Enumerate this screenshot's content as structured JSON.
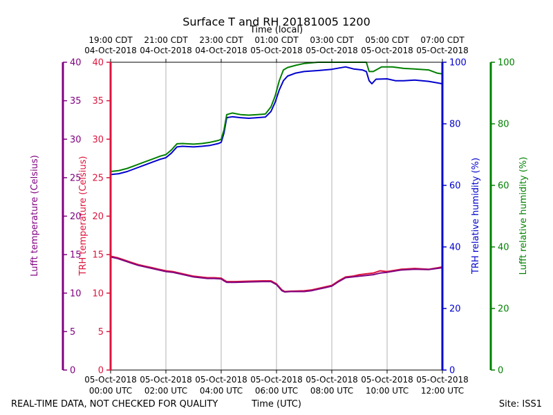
{
  "chart_data": {
    "type": "line",
    "title": "Surface T and RH 20181005 1200",
    "top_axis_label": "Time (local)",
    "xlabel": "Time (UTC)",
    "footer_left": "REAL-TIME DATA, NOT CHECKED FOR QUALITY",
    "footer_right": "Site: ISS1",
    "x_hours_utc": [
      0,
      12
    ],
    "bottom_ticks": [
      {
        "hour": 0,
        "line1": "05-Oct-2018",
        "line2": "00:00 UTC"
      },
      {
        "hour": 2,
        "line1": "05-Oct-2018",
        "line2": "02:00 UTC"
      },
      {
        "hour": 4,
        "line1": "05-Oct-2018",
        "line2": "04:00 UTC"
      },
      {
        "hour": 6,
        "line1": "05-Oct-2018",
        "line2": "06:00 UTC"
      },
      {
        "hour": 8,
        "line1": "05-Oct-2018",
        "line2": "08:00 UTC"
      },
      {
        "hour": 10,
        "line1": "05-Oct-2018",
        "line2": "10:00 UTC"
      },
      {
        "hour": 12,
        "line1": "05-Oct-2018",
        "line2": "12:00 UTC"
      }
    ],
    "top_ticks": [
      {
        "hour": 0,
        "line1": "19:00 CDT",
        "line2": "04-Oct-2018"
      },
      {
        "hour": 2,
        "line1": "21:00 CDT",
        "line2": "04-Oct-2018"
      },
      {
        "hour": 4,
        "line1": "23:00 CDT",
        "line2": "04-Oct-2018"
      },
      {
        "hour": 6,
        "line1": "01:00 CDT",
        "line2": "05-Oct-2018"
      },
      {
        "hour": 8,
        "line1": "03:00 CDT",
        "line2": "05-Oct-2018"
      },
      {
        "hour": 10,
        "line1": "05:00 CDT",
        "line2": "05-Oct-2018"
      },
      {
        "hour": 12,
        "line1": "07:00 CDT",
        "line2": "05-Oct-2018"
      }
    ],
    "grid": "vertical",
    "axes": {
      "lufft_temp": {
        "label": "Lufft temperature (Celsius)",
        "range": [
          0,
          40
        ],
        "ticks": [
          "0",
          "5",
          "10",
          "15",
          "20",
          "25",
          "30",
          "35",
          "40"
        ],
        "color": "#800080"
      },
      "trh_temp": {
        "label": "TRH temperature (Celsius)",
        "range": [
          0,
          40
        ],
        "ticks": [
          "0",
          "5",
          "10",
          "15",
          "20",
          "25",
          "30",
          "35",
          "40"
        ],
        "color": "#dc143c"
      },
      "trh_rh": {
        "label": "TRH relative humidity (%)",
        "range": [
          0,
          100
        ],
        "ticks": [
          "0",
          "20",
          "40",
          "60",
          "80",
          "100"
        ],
        "color": "#0000cd"
      },
      "lufft_rh": {
        "label": "Lufft relative humidity (%)",
        "range": [
          0,
          100
        ],
        "ticks": [
          "0",
          "20",
          "40",
          "60",
          "80",
          "100"
        ],
        "color": "#008000"
      }
    },
    "series": [
      {
        "axis": "trh_temp",
        "color": "#dc143c",
        "points": [
          [
            0,
            14.8
          ],
          [
            0.25,
            14.6
          ],
          [
            0.5,
            14.3
          ],
          [
            0.75,
            14.0
          ],
          [
            1.0,
            13.7
          ],
          [
            1.25,
            13.5
          ],
          [
            1.5,
            13.3
          ],
          [
            1.75,
            13.1
          ],
          [
            2.0,
            12.9
          ],
          [
            2.25,
            12.8
          ],
          [
            2.5,
            12.6
          ],
          [
            2.75,
            12.4
          ],
          [
            3.0,
            12.2
          ],
          [
            3.25,
            12.1
          ],
          [
            3.5,
            12.0
          ],
          [
            3.75,
            12.0
          ],
          [
            4.0,
            11.95
          ],
          [
            4.1,
            11.7
          ],
          [
            4.2,
            11.5
          ],
          [
            4.5,
            11.5
          ],
          [
            5.0,
            11.55
          ],
          [
            5.5,
            11.6
          ],
          [
            5.8,
            11.6
          ],
          [
            6.0,
            11.2
          ],
          [
            6.1,
            10.8
          ],
          [
            6.2,
            10.4
          ],
          [
            6.3,
            10.2
          ],
          [
            6.5,
            10.25
          ],
          [
            7.0,
            10.3
          ],
          [
            7.25,
            10.4
          ],
          [
            7.5,
            10.6
          ],
          [
            7.75,
            10.8
          ],
          [
            8.0,
            11.0
          ],
          [
            8.25,
            11.6
          ],
          [
            8.5,
            12.1
          ],
          [
            8.75,
            12.2
          ],
          [
            9.0,
            12.4
          ],
          [
            9.25,
            12.5
          ],
          [
            9.5,
            12.6
          ],
          [
            9.75,
            12.9
          ],
          [
            10.0,
            12.8
          ],
          [
            10.5,
            13.1
          ],
          [
            11.0,
            13.2
          ],
          [
            11.5,
            13.1
          ],
          [
            12.0,
            13.4
          ]
        ]
      },
      {
        "axis": "lufft_temp",
        "color": "#800080",
        "points": [
          [
            0,
            14.7
          ],
          [
            0.25,
            14.5
          ],
          [
            0.5,
            14.2
          ],
          [
            0.75,
            13.9
          ],
          [
            1.0,
            13.6
          ],
          [
            1.25,
            13.4
          ],
          [
            1.5,
            13.2
          ],
          [
            1.75,
            13.0
          ],
          [
            2.0,
            12.8
          ],
          [
            2.25,
            12.7
          ],
          [
            2.5,
            12.5
          ],
          [
            2.75,
            12.3
          ],
          [
            3.0,
            12.1
          ],
          [
            3.25,
            12.0
          ],
          [
            3.5,
            11.9
          ],
          [
            3.75,
            11.9
          ],
          [
            4.0,
            11.85
          ],
          [
            4.1,
            11.6
          ],
          [
            4.2,
            11.4
          ],
          [
            4.5,
            11.4
          ],
          [
            5.0,
            11.45
          ],
          [
            5.5,
            11.5
          ],
          [
            5.8,
            11.5
          ],
          [
            6.0,
            11.1
          ],
          [
            6.1,
            10.7
          ],
          [
            6.2,
            10.3
          ],
          [
            6.3,
            10.15
          ],
          [
            6.5,
            10.2
          ],
          [
            7.0,
            10.2
          ],
          [
            7.25,
            10.3
          ],
          [
            7.5,
            10.5
          ],
          [
            7.75,
            10.7
          ],
          [
            8.0,
            10.9
          ],
          [
            8.25,
            11.5
          ],
          [
            8.5,
            12.0
          ],
          [
            8.75,
            12.1
          ],
          [
            9.0,
            12.2
          ],
          [
            9.25,
            12.3
          ],
          [
            9.5,
            12.4
          ],
          [
            9.75,
            12.6
          ],
          [
            10.0,
            12.7
          ],
          [
            10.5,
            13.0
          ],
          [
            11.0,
            13.1
          ],
          [
            11.5,
            13.05
          ],
          [
            12.0,
            13.3
          ]
        ]
      },
      {
        "axis": "trh_rh",
        "color": "#0000cd",
        "points": [
          [
            0,
            63.5
          ],
          [
            0.3,
            63.8
          ],
          [
            0.6,
            64.5
          ],
          [
            0.9,
            65.5
          ],
          [
            1.2,
            66.5
          ],
          [
            1.5,
            67.5
          ],
          [
            1.8,
            68.5
          ],
          [
            2.0,
            69.0
          ],
          [
            2.2,
            70.5
          ],
          [
            2.4,
            72.5
          ],
          [
            2.6,
            72.7
          ],
          [
            3.0,
            72.5
          ],
          [
            3.3,
            72.7
          ],
          [
            3.6,
            73.0
          ],
          [
            3.9,
            73.6
          ],
          [
            4.0,
            74.0
          ],
          [
            4.1,
            77.0
          ],
          [
            4.2,
            82.0
          ],
          [
            4.4,
            82.3
          ],
          [
            4.7,
            82.0
          ],
          [
            5.0,
            81.8
          ],
          [
            5.3,
            82.0
          ],
          [
            5.6,
            82.2
          ],
          [
            5.8,
            84.0
          ],
          [
            5.95,
            87.0
          ],
          [
            6.1,
            91.0
          ],
          [
            6.25,
            94.0
          ],
          [
            6.4,
            95.5
          ],
          [
            6.7,
            96.5
          ],
          [
            7.0,
            97.0
          ],
          [
            7.5,
            97.3
          ],
          [
            8.0,
            97.7
          ],
          [
            8.5,
            98.5
          ],
          [
            8.8,
            97.8
          ],
          [
            9.1,
            97.5
          ],
          [
            9.25,
            97.0
          ],
          [
            9.35,
            94.0
          ],
          [
            9.45,
            93.0
          ],
          [
            9.6,
            94.5
          ],
          [
            10.0,
            94.6
          ],
          [
            10.3,
            94.0
          ],
          [
            10.6,
            94.0
          ],
          [
            11.0,
            94.2
          ],
          [
            11.5,
            93.8
          ],
          [
            12.0,
            93.0
          ]
        ]
      },
      {
        "axis": "lufft_rh",
        "color": "#008000",
        "points": [
          [
            0,
            64.5
          ],
          [
            0.3,
            64.8
          ],
          [
            0.6,
            65.5
          ],
          [
            0.9,
            66.5
          ],
          [
            1.2,
            67.5
          ],
          [
            1.5,
            68.5
          ],
          [
            1.8,
            69.5
          ],
          [
            2.0,
            70.0
          ],
          [
            2.2,
            71.5
          ],
          [
            2.4,
            73.5
          ],
          [
            2.6,
            73.6
          ],
          [
            3.0,
            73.4
          ],
          [
            3.3,
            73.6
          ],
          [
            3.6,
            74.0
          ],
          [
            3.9,
            74.6
          ],
          [
            4.0,
            75.0
          ],
          [
            4.1,
            78.0
          ],
          [
            4.2,
            83.0
          ],
          [
            4.4,
            83.5
          ],
          [
            4.7,
            83.0
          ],
          [
            5.0,
            82.8
          ],
          [
            5.3,
            83.0
          ],
          [
            5.6,
            83.2
          ],
          [
            5.8,
            85.5
          ],
          [
            5.95,
            89.0
          ],
          [
            6.1,
            94.0
          ],
          [
            6.25,
            97.5
          ],
          [
            6.4,
            98.3
          ],
          [
            6.7,
            99.0
          ],
          [
            7.0,
            99.6
          ],
          [
            7.5,
            100
          ],
          [
            8.0,
            100
          ],
          [
            8.5,
            100
          ],
          [
            9.0,
            100
          ],
          [
            9.25,
            100
          ],
          [
            9.35,
            97.0
          ],
          [
            9.5,
            97.0
          ],
          [
            9.8,
            98.5
          ],
          [
            10.2,
            98.5
          ],
          [
            10.6,
            98.0
          ],
          [
            11.0,
            97.8
          ],
          [
            11.5,
            97.5
          ],
          [
            11.8,
            96.5
          ],
          [
            12.0,
            96.2
          ]
        ]
      }
    ]
  }
}
